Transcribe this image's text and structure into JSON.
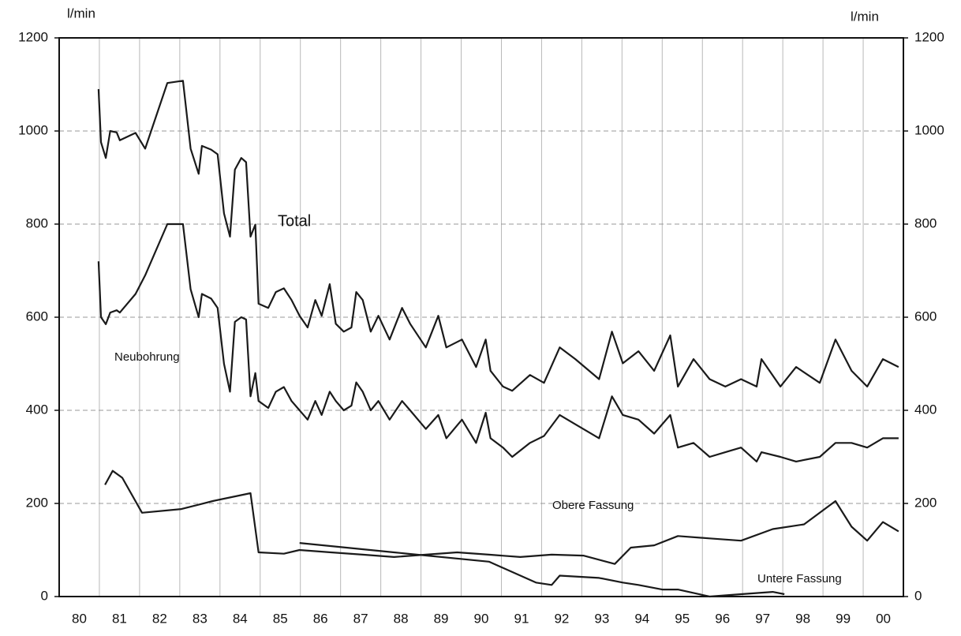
{
  "chart_data": {
    "type": "line",
    "ylabel": "l/min",
    "y2label": "l/min",
    "xlim": [
      1980,
      2001
    ],
    "xticks": [
      {
        "value": 1980.5,
        "label": "80"
      },
      {
        "value": 1981.5,
        "label": "81"
      },
      {
        "value": 1982.5,
        "label": "82"
      },
      {
        "value": 1983.5,
        "label": "83"
      },
      {
        "value": 1984.5,
        "label": "84"
      },
      {
        "value": 1985.5,
        "label": "85"
      },
      {
        "value": 1986.5,
        "label": "86"
      },
      {
        "value": 1987.5,
        "label": "87"
      },
      {
        "value": 1988.5,
        "label": "88"
      },
      {
        "value": 1989.5,
        "label": "89"
      },
      {
        "value": 1990.5,
        "label": "90"
      },
      {
        "value": 1991.5,
        "label": "91"
      },
      {
        "value": 1992.5,
        "label": "92"
      },
      {
        "value": 1993.5,
        "label": "93"
      },
      {
        "value": 1994.5,
        "label": "94"
      },
      {
        "value": 1995.5,
        "label": "95"
      },
      {
        "value": 1996.5,
        "label": "96"
      },
      {
        "value": 1997.5,
        "label": "97"
      },
      {
        "value": 1998.5,
        "label": "98"
      },
      {
        "value": 1999.5,
        "label": "99"
      },
      {
        "value": 2000.5,
        "label": "00"
      }
    ],
    "ylim": [
      0,
      1200
    ],
    "yticks": [
      0,
      200,
      400,
      600,
      800,
      1000,
      1200
    ],
    "y2lim": [
      0,
      1200
    ],
    "y2ticks": [
      0,
      200,
      400,
      600,
      800,
      1000,
      1200
    ],
    "grid": true,
    "annotations": [
      "Total",
      "Neubohrung",
      "Obere Fassung",
      "Untere Fassung"
    ],
    "series": [
      {
        "name": "Total",
        "color": "#1a1a1a",
        "x": [
          1980.98,
          1981.04,
          1981.16,
          1981.27,
          1981.43,
          1981.51,
          1981.9,
          1982.14,
          1982.69,
          1983.08,
          1983.27,
          1983.47,
          1983.55,
          1983.78,
          1983.94,
          1984.1,
          1984.25,
          1984.37,
          1984.53,
          1984.65,
          1984.76,
          1984.88,
          1984.96,
          1985.2,
          1985.39,
          1985.59,
          1985.78,
          1985.98,
          1986.18,
          1986.37,
          1986.53,
          1986.73,
          1986.88,
          1987.08,
          1987.27,
          1987.39,
          1987.55,
          1987.75,
          1987.94,
          1988.22,
          1988.53,
          1988.73,
          1989.12,
          1989.43,
          1989.63,
          1990.02,
          1990.37,
          1990.61,
          1990.73,
          1991.04,
          1991.27,
          1991.71,
          1992.06,
          1992.45,
          1992.84,
          1993.43,
          1993.75,
          1994.02,
          1994.41,
          1994.8,
          1995.2,
          1995.39,
          1995.78,
          1996.18,
          1996.57,
          1996.96,
          1997.35,
          1997.47,
          1997.94,
          1998.33,
          1998.92,
          1999.31,
          1999.71,
          2000.1,
          2000.49,
          2000.88
        ],
        "values": [
          1090,
          976,
          942,
          1000,
          997,
          980,
          996,
          962,
          1103,
          1108,
          962,
          908,
          968,
          960,
          950,
          823,
          773,
          917,
          942,
          933,
          773,
          799,
          629,
          620,
          654,
          662,
          637,
          603,
          578,
          637,
          603,
          671,
          586,
          569,
          578,
          654,
          637,
          569,
          603,
          552,
          620,
          586,
          535,
          603,
          535,
          552,
          493,
          552,
          485,
          451,
          442,
          476,
          459,
          535,
          510,
          467,
          569,
          501,
          527,
          485,
          561,
          451,
          510,
          467,
          451,
          467,
          451,
          510,
          451,
          493,
          459,
          552,
          485,
          451,
          510,
          493
        ]
      },
      {
        "name": "Neubohrung",
        "color": "#1a1a1a",
        "x": [
          1980.98,
          1981.04,
          1981.16,
          1981.27,
          1981.43,
          1981.51,
          1981.9,
          1982.14,
          1982.69,
          1983.08,
          1983.27,
          1983.47,
          1983.55,
          1983.78,
          1983.94,
          1984.1,
          1984.25,
          1984.37,
          1984.53,
          1984.65,
          1984.76,
          1984.88,
          1984.96,
          1985.2,
          1985.39,
          1985.59,
          1985.78,
          1985.98,
          1986.18,
          1986.37,
          1986.53,
          1986.73,
          1986.88,
          1987.08,
          1987.27,
          1987.39,
          1987.55,
          1987.75,
          1987.94,
          1988.22,
          1988.53,
          1988.73,
          1989.12,
          1989.43,
          1989.63,
          1990.02,
          1990.37,
          1990.61,
          1990.73,
          1991.04,
          1991.27,
          1991.71,
          1992.06,
          1992.45,
          1992.84,
          1993.43,
          1993.75,
          1994.02,
          1994.41,
          1994.8,
          1995.2,
          1995.39,
          1995.78,
          1996.18,
          1996.57,
          1996.96,
          1997.35,
          1997.47,
          1997.94,
          1998.33,
          1998.92,
          1999.31,
          1999.71,
          2000.1,
          2000.49,
          2000.88
        ],
        "values": [
          720,
          600,
          585,
          610,
          615,
          610,
          650,
          690,
          800,
          800,
          660,
          600,
          650,
          640,
          620,
          500,
          440,
          590,
          600,
          595,
          430,
          480,
          420,
          405,
          440,
          450,
          420,
          400,
          380,
          420,
          390,
          440,
          420,
          400,
          410,
          460,
          440,
          400,
          420,
          380,
          420,
          400,
          360,
          390,
          340,
          380,
          330,
          395,
          340,
          320,
          300,
          330,
          345,
          390,
          370,
          340,
          430,
          390,
          380,
          350,
          390,
          320,
          330,
          300,
          310,
          320,
          290,
          310,
          300,
          290,
          300,
          330,
          330,
          320,
          340,
          340
        ]
      },
      {
        "name": "Obere Fassung",
        "color": "#1a1a1a",
        "x": [
          1981.14,
          1981.33,
          1981.57,
          1982.06,
          1983.04,
          1983.82,
          1984.76,
          1984.96,
          1985.59,
          1985.98,
          1986.76,
          1987.55,
          1988.33,
          1989.12,
          1989.9,
          1990.69,
          1991.47,
          1992.25,
          1993.04,
          1993.82,
          1994.22,
          1994.8,
          1995.39,
          1996.18,
          1996.96,
          1997.75,
          1998.53,
          1999.31,
          1999.71,
          2000.1,
          2000.49,
          2000.88
        ],
        "values": [
          240,
          270,
          255,
          180,
          188,
          205,
          222,
          95,
          92,
          100,
          95,
          90,
          85,
          90,
          95,
          90,
          85,
          90,
          88,
          70,
          105,
          110,
          130,
          125,
          120,
          145,
          155,
          205,
          150,
          120,
          160,
          140
        ]
      },
      {
        "name": "Untere Fassung",
        "color": "#1a1a1a",
        "x": [
          1985.98,
          1988.33,
          1990.69,
          1991.86,
          1992.25,
          1992.45,
          1993.43,
          1994.02,
          1994.41,
          1995.0,
          1995.39,
          1996.18,
          1996.96,
          1997.75,
          1998.04
        ],
        "values": [
          115,
          95,
          75,
          30,
          25,
          45,
          40,
          30,
          25,
          15,
          15,
          0,
          5,
          10,
          5
        ]
      }
    ]
  }
}
